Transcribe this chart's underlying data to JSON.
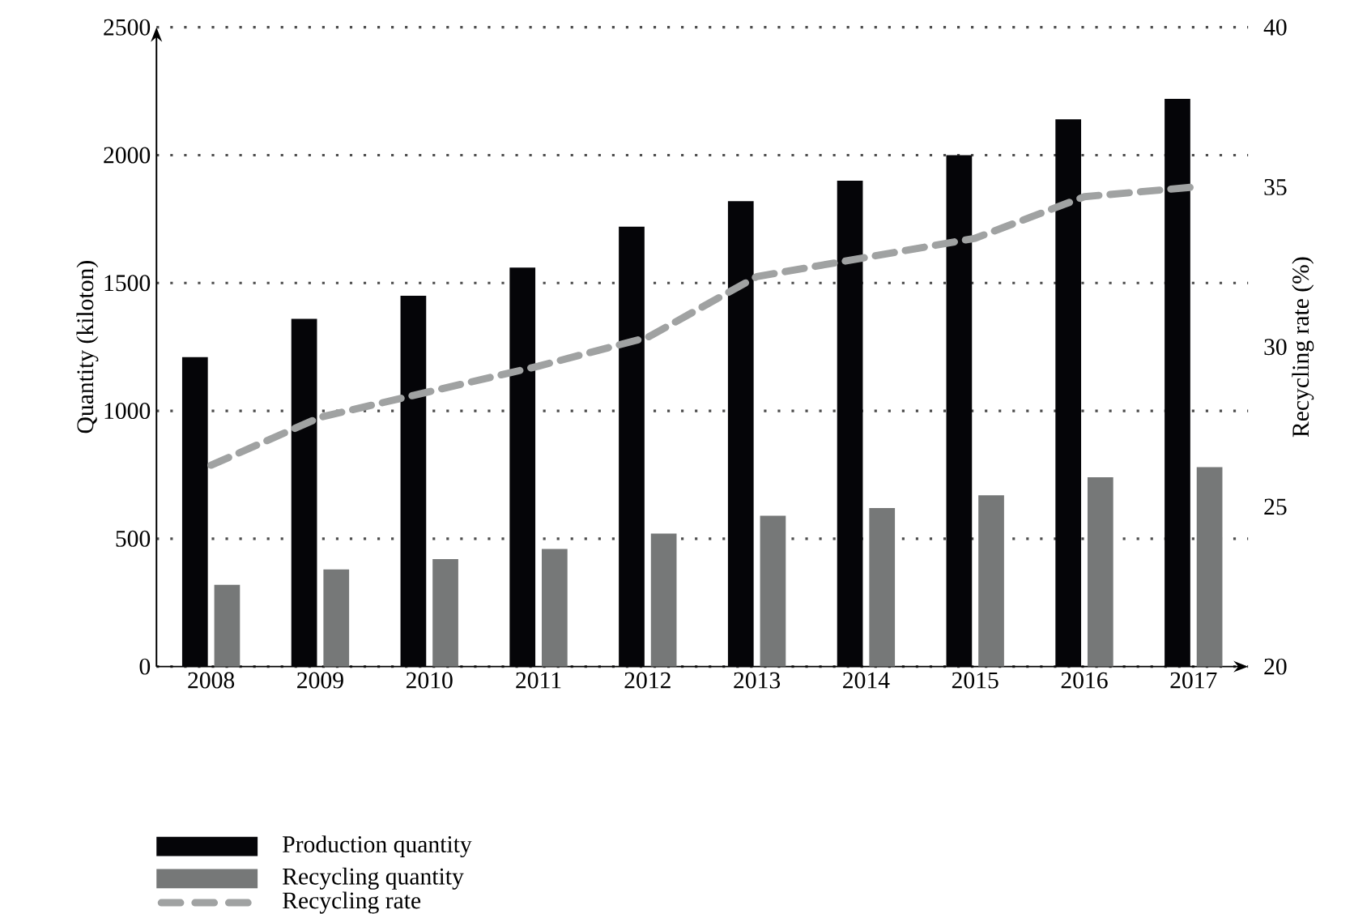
{
  "chart_data": {
    "type": "bar",
    "categories": [
      "2008",
      "2009",
      "2010",
      "2011",
      "2012",
      "2013",
      "2014",
      "2015",
      "2016",
      "2017"
    ],
    "series": [
      {
        "name": "Production quantity",
        "color": "#050508",
        "values": [
          1210,
          1360,
          1450,
          1560,
          1720,
          1820,
          1900,
          2000,
          2140,
          2220
        ]
      },
      {
        "name": "Recycling quantity",
        "color": "#767878",
        "values": [
          320,
          380,
          420,
          460,
          520,
          590,
          620,
          670,
          740,
          780
        ]
      },
      {
        "name": "Recycling rate",
        "type": "line",
        "axis": "y2",
        "color": "#a0a2a2",
        "line_style": "dashed",
        "marker": "none",
        "values": [
          26.3,
          27.8,
          28.6,
          29.4,
          30.3,
          32.2,
          32.8,
          33.4,
          34.7,
          35.0
        ]
      }
    ],
    "ylabel": "Quantity (kiloton)",
    "y2label": "Recycling rate (%)",
    "ylim": [
      0,
      2500
    ],
    "yticks": [
      0,
      500,
      1000,
      1500,
      2000,
      2500
    ],
    "y2lim": [
      20,
      40
    ],
    "y2ticks": [
      20,
      25,
      30,
      35,
      40
    ],
    "grid": "y",
    "legend": "bottom left"
  }
}
